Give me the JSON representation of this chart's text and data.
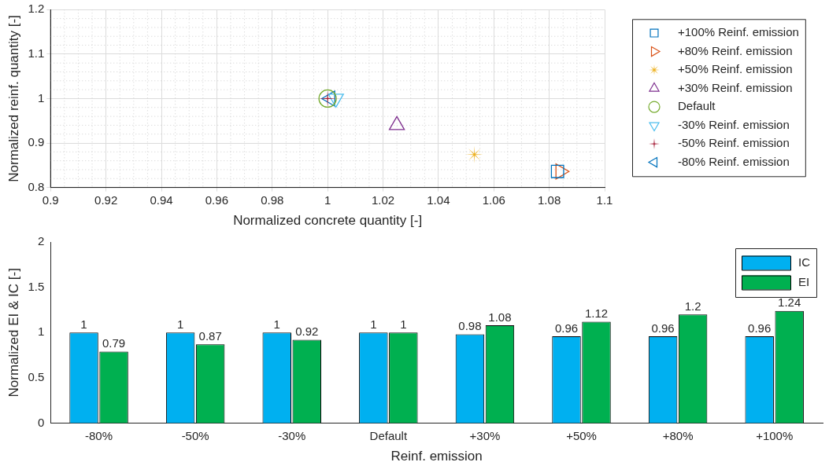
{
  "chart_data": [
    {
      "type": "scatter",
      "xlabel": "Normalized concrete quantity [-]",
      "ylabel": "Normalized reinf. quantity [-]",
      "xlim": [
        0.9,
        1.1
      ],
      "xticks": [
        0.9,
        0.92,
        0.94,
        0.96,
        0.98,
        1,
        1.02,
        1.04,
        1.06,
        1.08,
        1.1
      ],
      "ylim": [
        0.8,
        1.2
      ],
      "yticks": [
        0.8,
        0.9,
        1,
        1.1,
        1.2
      ],
      "grid": true,
      "legend": "right",
      "series": [
        {
          "name": "+100% Reinf. emission",
          "color": "#0072bd",
          "marker": "square",
          "x": [
            1.083
          ],
          "values": [
            0.836
          ]
        },
        {
          "name": "+80% Reinf. emission",
          "color": "#d95319",
          "marker": "triangle-right",
          "x": [
            1.084
          ],
          "values": [
            0.836
          ]
        },
        {
          "name": "+50% Reinf. emission",
          "color": "#edb120",
          "marker": "star",
          "x": [
            1.053
          ],
          "values": [
            0.874
          ]
        },
        {
          "name": "+30% Reinf. emission",
          "color": "#7e2f8e",
          "marker": "triangle",
          "x": [
            1.025
          ],
          "values": [
            0.94
          ]
        },
        {
          "name": "Default",
          "color": "#77ac30",
          "marker": "circle",
          "x": [
            1.0
          ],
          "values": [
            1.0
          ]
        },
        {
          "name": "-30% Reinf. emission",
          "color": "#4dbeee",
          "marker": "triangle-down",
          "x": [
            1.003
          ],
          "values": [
            1.0
          ]
        },
        {
          "name": "-50% Reinf. emission",
          "color": "#a2142f",
          "marker": "cross",
          "x": [
            1.0
          ],
          "values": [
            1.0
          ]
        },
        {
          "name": "-80% Reinf. emission",
          "color": "#0072bd",
          "marker": "triangle-left",
          "x": [
            1.001
          ],
          "values": [
            1.0
          ]
        }
      ]
    },
    {
      "type": "bar",
      "xlabel": "Reinf. emission",
      "ylabel": "Normalized EI & IC [-]",
      "categories": [
        "-80%",
        "-50%",
        "-30%",
        "Default",
        "+30%",
        "+50%",
        "+80%",
        "+100%"
      ],
      "ylim": [
        0,
        2
      ],
      "yticks": [
        0,
        0.5,
        1,
        1.5,
        2
      ],
      "legend": "top right",
      "data_labels": true,
      "series": [
        {
          "name": "IC",
          "color": "#00b0f0",
          "values": [
            1,
            1,
            1,
            1,
            0.98,
            0.96,
            0.96,
            0.96
          ]
        },
        {
          "name": "EI",
          "color": "#00b050",
          "values": [
            0.79,
            0.87,
            0.92,
            1,
            1.08,
            1.12,
            1.2,
            1.24
          ]
        }
      ]
    }
  ]
}
